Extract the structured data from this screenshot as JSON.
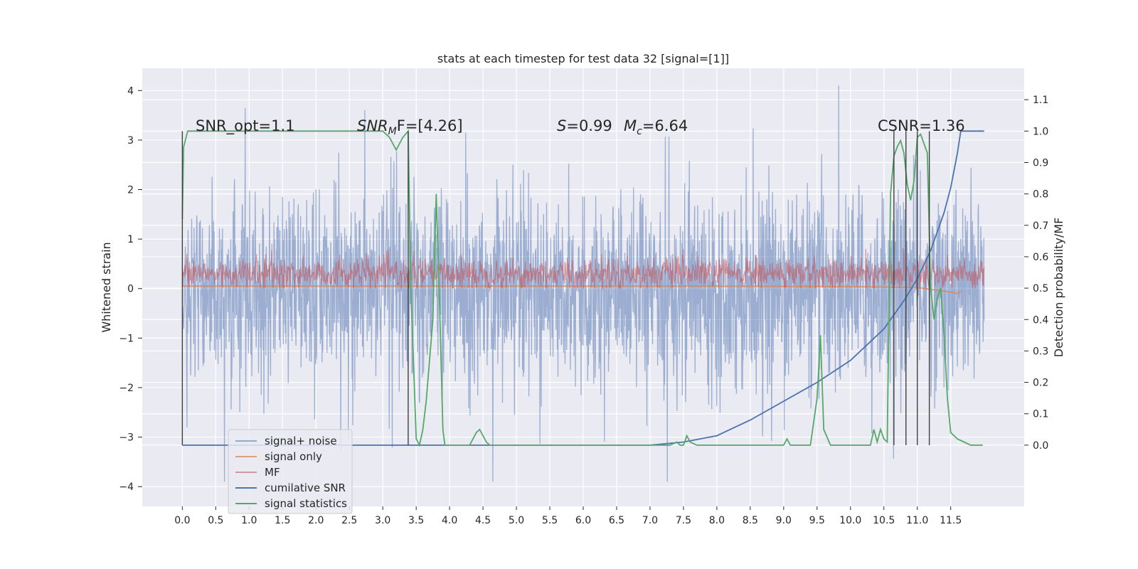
{
  "chart_data": {
    "type": "line",
    "title": "stats at each timestep for test data 32 [signal=[1]]",
    "xlabel": "",
    "ylabel_left": "Whitened strain",
    "ylabel_right": "Detection probability/MF",
    "xlim": [
      -0.6,
      12.6
    ],
    "ylim_left": [
      -4.4,
      4.45
    ],
    "ylim_right": [
      -0.195,
      1.2
    ],
    "x_ticks": [
      "0.0",
      "0.5",
      "1.0",
      "1.5",
      "2.0",
      "2.5",
      "3.0",
      "3.5",
      "4.0",
      "4.5",
      "5.0",
      "5.5",
      "6.0",
      "6.5",
      "7.0",
      "7.5",
      "8.0",
      "8.5",
      "9.0",
      "9.5",
      "10.0",
      "10.5",
      "11.0",
      "11.5"
    ],
    "y_ticks_left": [
      "−4",
      "−3",
      "−2",
      "−1",
      "0",
      "1",
      "2",
      "3",
      "4"
    ],
    "y_ticks_right": [
      "0.0",
      "0.1",
      "0.2",
      "0.3",
      "0.4",
      "0.5",
      "0.6",
      "0.7",
      "0.8",
      "0.9",
      "1.0",
      "1.1"
    ],
    "grid": true,
    "legend_position": "lower left",
    "annotations": {
      "snr_opt": "SNR_opt=1.1",
      "snr_mf_main": "SNR",
      "snr_mf_sub": "M",
      "snr_mf_rest": "F=[4.26]",
      "s_sym": "S",
      "s_val": "=0.99",
      "mc_sym": "M",
      "mc_sub": "c",
      "mc_val": "=6.64",
      "csnr": "CSNR=1.36"
    },
    "vertical_markers_x": [
      0.0,
      3.38,
      10.65,
      10.83,
      11.0,
      11.18
    ],
    "series": [
      {
        "name": "signal+ noise",
        "color": "#4c72b0",
        "axis": "left",
        "description_range": [
          -3.3,
          3.6
        ],
        "x_range": [
          0.0,
          12.0
        ]
      },
      {
        "name": "signal only",
        "color": "#dd8452",
        "axis": "left",
        "x": [
          0.0,
          2.0,
          4.0,
          6.0,
          8.0,
          10.0,
          11.0,
          11.4,
          11.6,
          11.65
        ],
        "y": [
          0.05,
          0.05,
          0.05,
          0.05,
          0.05,
          0.04,
          0.02,
          -0.05,
          -0.1,
          -0.05
        ]
      },
      {
        "name": "MF",
        "color": "#c44e52",
        "axis": "left",
        "description_range": [
          0.0,
          0.8
        ],
        "x_range": [
          0.0,
          12.0
        ]
      },
      {
        "name": "cumilative SNR",
        "color": "#4c72b0",
        "axis": "right",
        "x": [
          0.0,
          4.0,
          7.0,
          7.5,
          8.0,
          8.5,
          9.0,
          9.5,
          10.0,
          10.5,
          10.8,
          11.0,
          11.2,
          11.4,
          11.5,
          11.6,
          11.65,
          12.0
        ],
        "y": [
          0.0,
          0.0,
          0.0,
          0.01,
          0.03,
          0.08,
          0.14,
          0.2,
          0.27,
          0.37,
          0.46,
          0.53,
          0.62,
          0.74,
          0.82,
          0.93,
          1.0,
          1.0
        ]
      },
      {
        "name": "signal statistics",
        "color": "#55a868",
        "axis": "right",
        "x": [
          0.0,
          0.02,
          0.08,
          0.5,
          1.0,
          1.5,
          2.0,
          2.5,
          3.0,
          3.1,
          3.2,
          3.3,
          3.38,
          3.42,
          3.5,
          3.55,
          3.6,
          3.65,
          3.75,
          3.8,
          3.85,
          3.9,
          3.93,
          4.0,
          4.3,
          4.4,
          4.45,
          4.55,
          4.6,
          5.0,
          6.0,
          7.0,
          7.3,
          7.4,
          7.45,
          7.5,
          7.55,
          7.6,
          7.7,
          8.0,
          9.0,
          9.05,
          9.1,
          9.2,
          9.4,
          9.5,
          9.55,
          9.6,
          9.7,
          9.8,
          10.0,
          10.2,
          10.3,
          10.35,
          10.4,
          10.45,
          10.5,
          10.55,
          10.6,
          10.65,
          10.7,
          10.75,
          10.8,
          10.85,
          10.9,
          10.95,
          11.0,
          11.05,
          11.1,
          11.15,
          11.2,
          11.25,
          11.3,
          11.35,
          11.4,
          11.45,
          11.5,
          11.6,
          11.7,
          11.8,
          11.9,
          11.98
        ],
        "y": [
          0.72,
          0.95,
          1.0,
          1.0,
          1.0,
          1.0,
          1.0,
          1.0,
          1.0,
          0.98,
          0.94,
          0.98,
          1.0,
          0.5,
          0.02,
          0.0,
          0.05,
          0.14,
          0.4,
          0.8,
          0.45,
          0.05,
          0.0,
          0.0,
          0.0,
          0.04,
          0.05,
          0.01,
          0.0,
          0.0,
          0.0,
          0.0,
          0.0,
          0.01,
          0.0,
          0.0,
          0.03,
          0.01,
          0.0,
          0.0,
          0.0,
          0.02,
          0.0,
          0.0,
          0.0,
          0.15,
          0.35,
          0.05,
          0.0,
          0.0,
          0.0,
          0.0,
          0.0,
          0.05,
          0.01,
          0.05,
          0.02,
          0.01,
          0.8,
          0.92,
          0.95,
          0.97,
          0.93,
          0.83,
          0.78,
          0.84,
          0.98,
          0.99,
          0.96,
          0.93,
          0.5,
          0.4,
          0.47,
          0.5,
          0.35,
          0.15,
          0.04,
          0.02,
          0.01,
          0.0,
          0.0,
          0.0
        ]
      }
    ]
  }
}
